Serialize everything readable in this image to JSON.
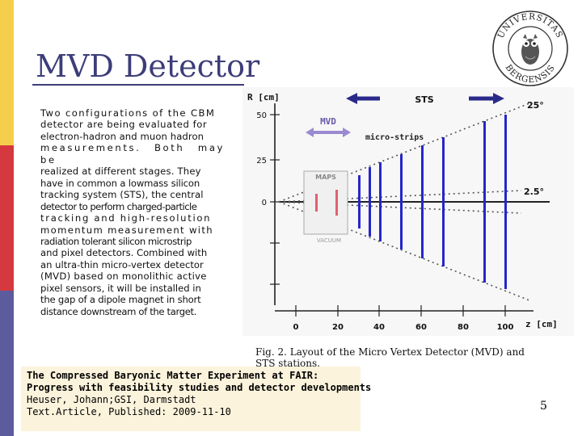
{
  "slide": {
    "title": "MVD Detector",
    "page_number": "5",
    "colors": {
      "title": "#3d3d7a",
      "sidebar_yellow": "#f5cf4b",
      "sidebar_red": "#d5393f",
      "sidebar_blue": "#5b5b9e",
      "reference_background": "#fcf3dc"
    }
  },
  "body_text_lines": [
    "Two configurations of the CBM",
    "detector are being evaluated for",
    "electron-hadron and muon hadron",
    "measurements. Both may be",
    "realized at different stages. They",
    "have in common a lowmass silicon",
    "tracking system (STS), the central",
    "detector to perform charged-particle",
    "tracking and high-resolution",
    "momentum measurement with",
    "radiation tolerant silicon microstrip",
    "and pixel detectors. Combined with",
    "an ultra-thin micro-vertex detector",
    "(MVD) based on monolithic active",
    "pixel sensors, it will be installed in",
    "the gap of a dipole magnet in short",
    "distance downstream of the target."
  ],
  "figure": {
    "axis_r_label": "R [cm]",
    "axis_z_label": "z [cm]",
    "r_ticks": [
      "50",
      "25",
      "0"
    ],
    "z_ticks": [
      "0",
      "20",
      "40",
      "60",
      "80",
      "100"
    ],
    "sts_label": "STS",
    "mvd_label": "MVD",
    "microstrips_label": "micro-strips",
    "maps_label": "MAPS",
    "vacuum_label": "VACUUM",
    "angle_25": "25°",
    "angle_2_5": "2.5°",
    "icons": [
      "arrow-left-icon",
      "arrow-right-icon",
      "double-arrow-icon"
    ],
    "colors": {
      "sts_arrow": "#2a2a8a",
      "mvd_arrow": "#9a8ad0",
      "strip_blue": "#2626c8",
      "maps_pink": "#e06070"
    }
  },
  "caption": {
    "line1": "Fig. 2.   Layout of the Micro Vertex Detector (MVD) and",
    "line2": "STS stations."
  },
  "reference": {
    "title_line1": "The Compressed Baryonic Matter Experiment at FAIR:",
    "title_line2": "Progress with feasibility studies and detector developments",
    "authors": "Heuser, Johann;GSI, Darmstadt",
    "type_line": "Text.Article, Published: 2009-11-10"
  },
  "logo": {
    "text_top": "UNIVERSITAS",
    "text_bottom": "BERGENSIS"
  }
}
